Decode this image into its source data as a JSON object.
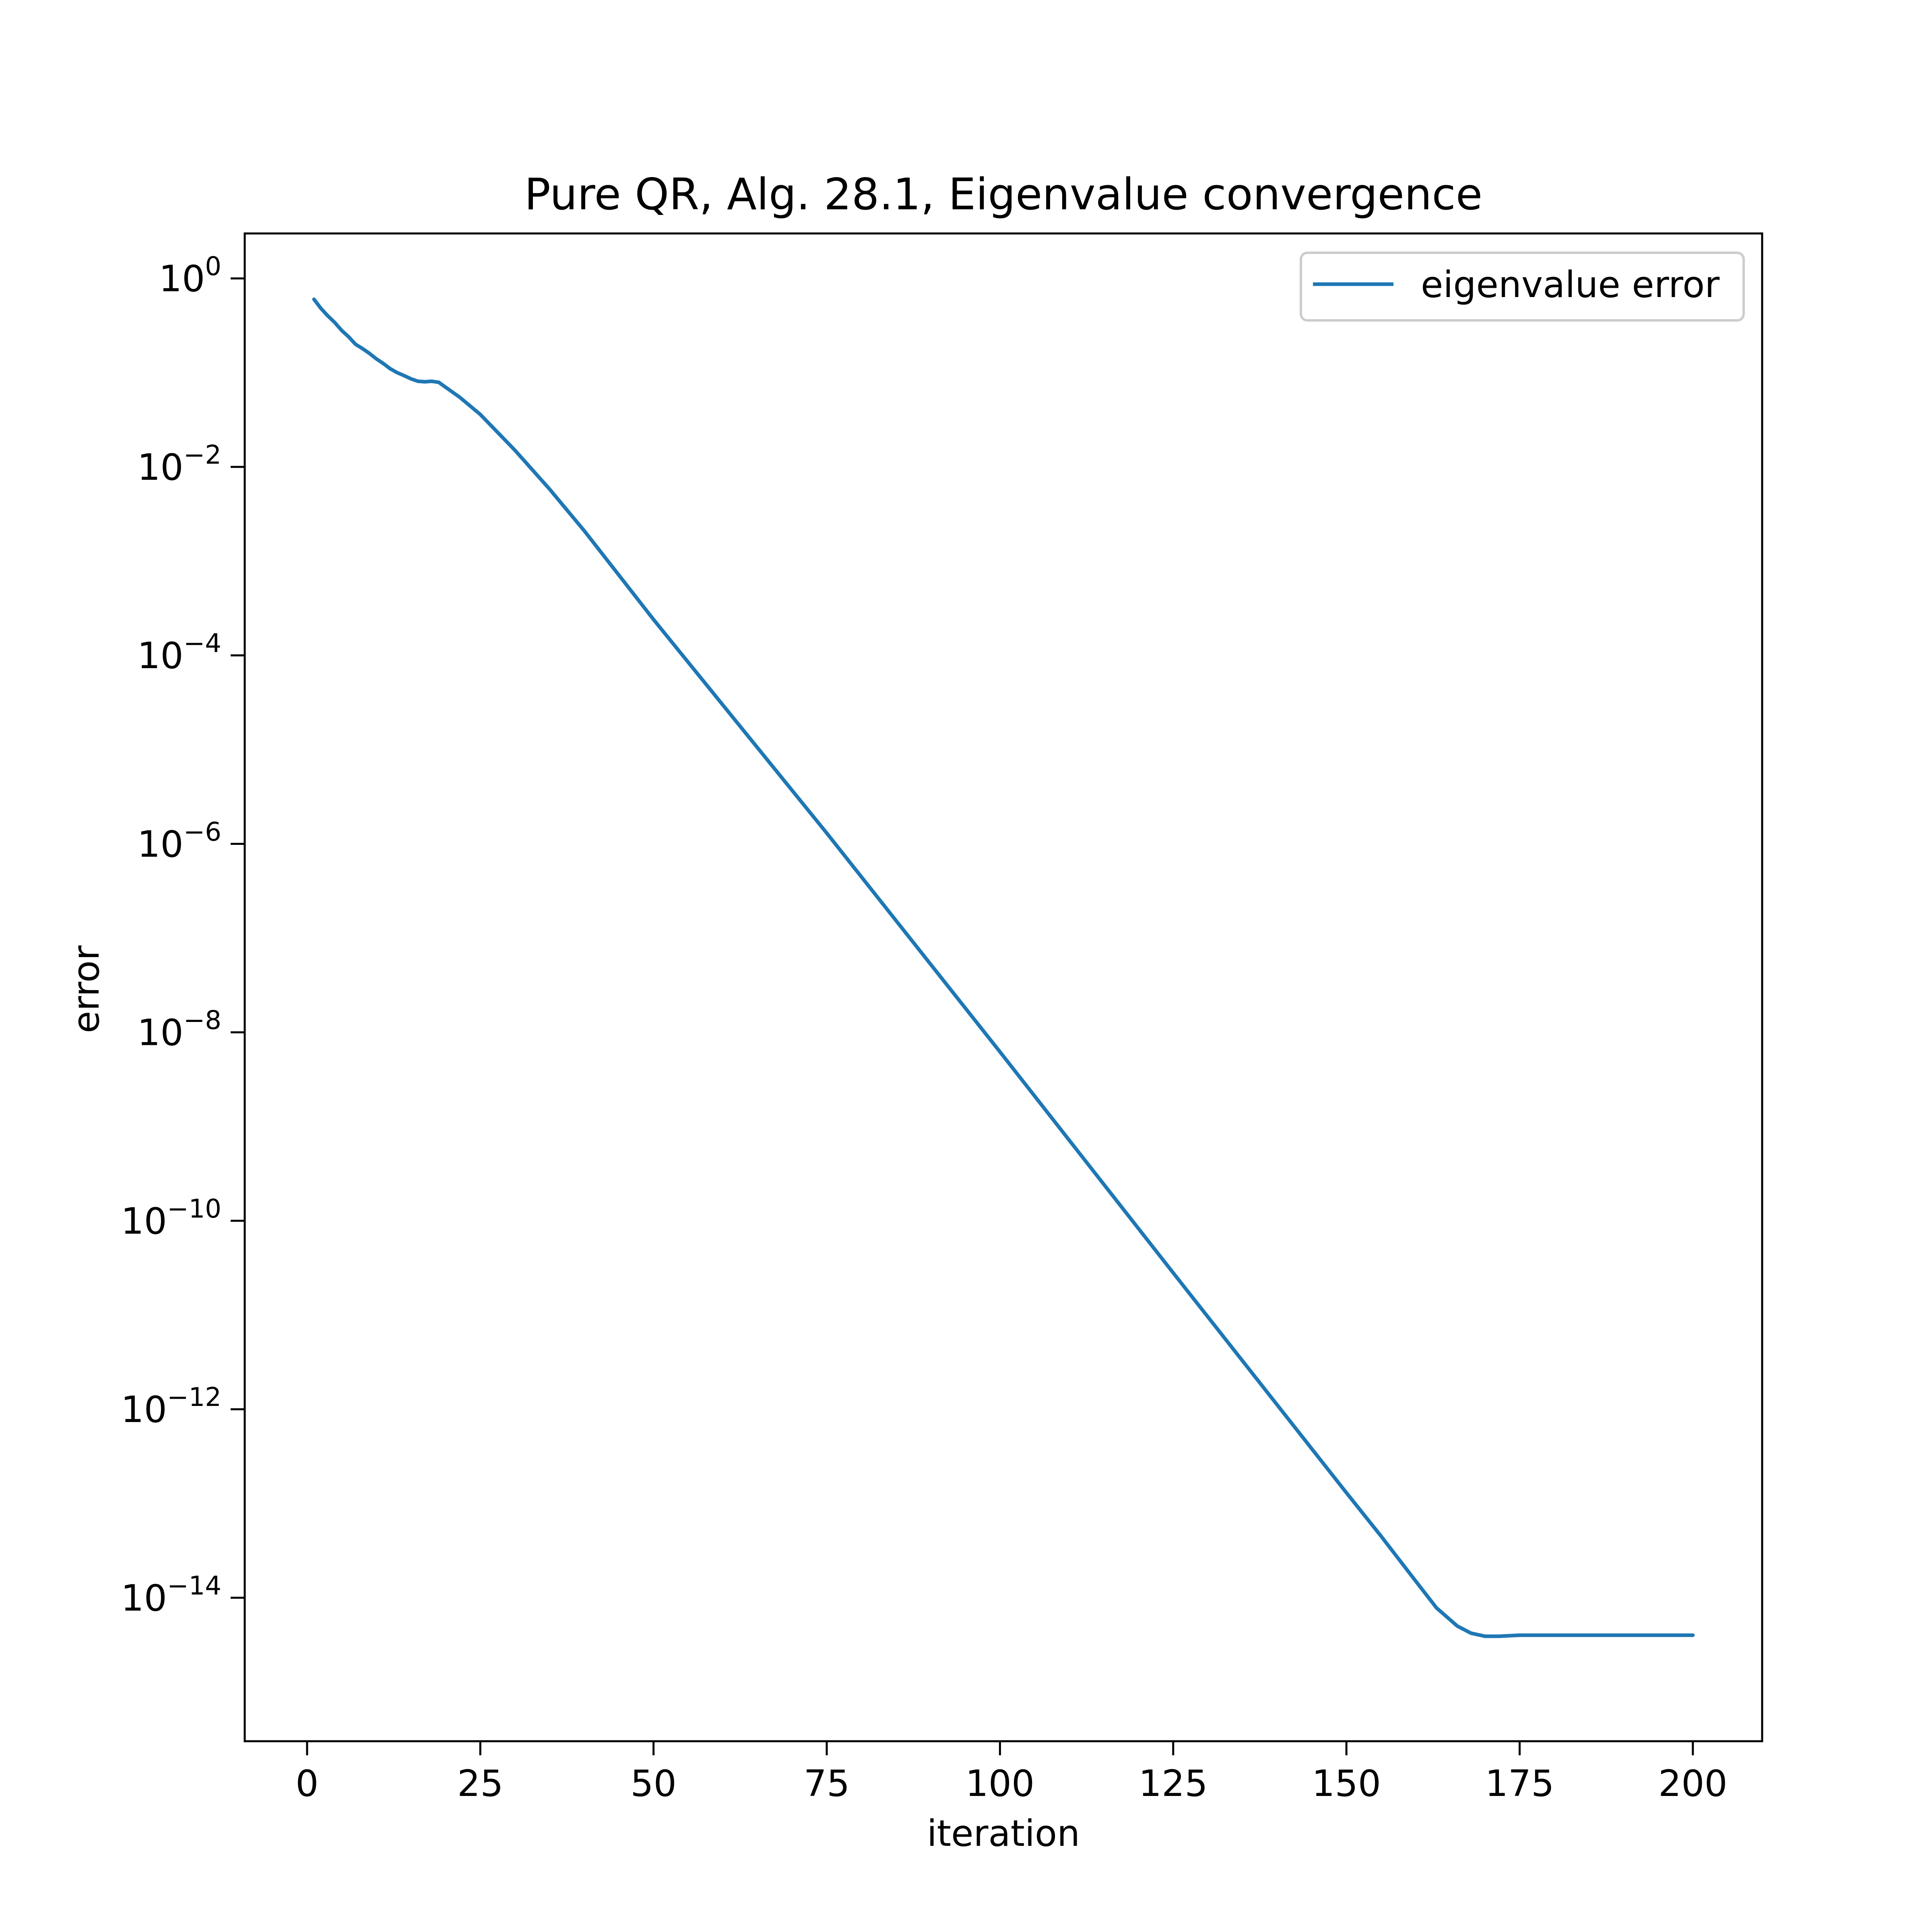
{
  "chart_data": {
    "type": "line",
    "title": "Pure QR, Alg. 28.1, Eigenvalue convergence",
    "xlabel": "iteration",
    "ylabel": "error",
    "xscale": "linear",
    "yscale": "log",
    "xlim": [
      -9,
      210
    ],
    "ylim": [
      3e-16,
      3.0
    ],
    "xticks": [
      {
        "value": 0,
        "label": "0"
      },
      {
        "value": 25,
        "label": "25"
      },
      {
        "value": 50,
        "label": "50"
      },
      {
        "value": 75,
        "label": "75"
      },
      {
        "value": 100,
        "label": "100"
      },
      {
        "value": 125,
        "label": "125"
      },
      {
        "value": 150,
        "label": "150"
      },
      {
        "value": 175,
        "label": "175"
      },
      {
        "value": 200,
        "label": "200"
      }
    ],
    "yticks": [
      {
        "value": 1,
        "base": "10",
        "exponent": "0"
      },
      {
        "value": 0.01,
        "base": "10",
        "exponent": "−2"
      },
      {
        "value": 0.0001,
        "base": "10",
        "exponent": "−4"
      },
      {
        "value": 1e-06,
        "base": "10",
        "exponent": "−6"
      },
      {
        "value": 1e-08,
        "base": "10",
        "exponent": "−8"
      },
      {
        "value": 1e-10,
        "base": "10",
        "exponent": "−10"
      },
      {
        "value": 1e-12,
        "base": "10",
        "exponent": "−12"
      },
      {
        "value": 1e-14,
        "base": "10",
        "exponent": "−14"
      }
    ],
    "grid": false,
    "legend_position": "upper right",
    "series": [
      {
        "name": "eigenvalue error",
        "color": "#1f77b4",
        "points": [
          [
            1,
            0.6
          ],
          [
            2,
            0.48
          ],
          [
            3,
            0.4
          ],
          [
            4,
            0.34
          ],
          [
            5,
            0.28
          ],
          [
            6,
            0.24
          ],
          [
            7,
            0.2
          ],
          [
            8,
            0.18
          ],
          [
            9,
            0.16
          ],
          [
            10,
            0.14
          ],
          [
            11,
            0.125
          ],
          [
            12,
            0.11
          ],
          [
            13,
            0.1
          ],
          [
            14,
            0.093
          ],
          [
            15,
            0.086
          ],
          [
            16,
            0.081
          ],
          [
            17,
            0.08
          ],
          [
            18,
            0.081
          ],
          [
            19,
            0.079
          ],
          [
            20,
            0.07
          ],
          [
            22,
            0.055
          ],
          [
            25,
            0.036
          ],
          [
            30,
            0.015
          ],
          [
            35,
            0.0058
          ],
          [
            40,
            0.0021
          ],
          [
            50,
            0.00024
          ],
          [
            75,
            1.3e-06
          ],
          [
            100,
            6.2e-09
          ],
          [
            125,
            2.8e-11
          ],
          [
            150,
            1.3e-13
          ],
          [
            155,
            4.5e-14
          ],
          [
            160,
            1.5e-14
          ],
          [
            163,
            7.8e-15
          ],
          [
            166,
            5e-15
          ],
          [
            168,
            4.2e-15
          ],
          [
            170,
            3.9e-15
          ],
          [
            172,
            3.9e-15
          ],
          [
            175,
            4e-15
          ],
          [
            185,
            4e-15
          ],
          [
            200,
            4e-15
          ]
        ]
      }
    ]
  }
}
